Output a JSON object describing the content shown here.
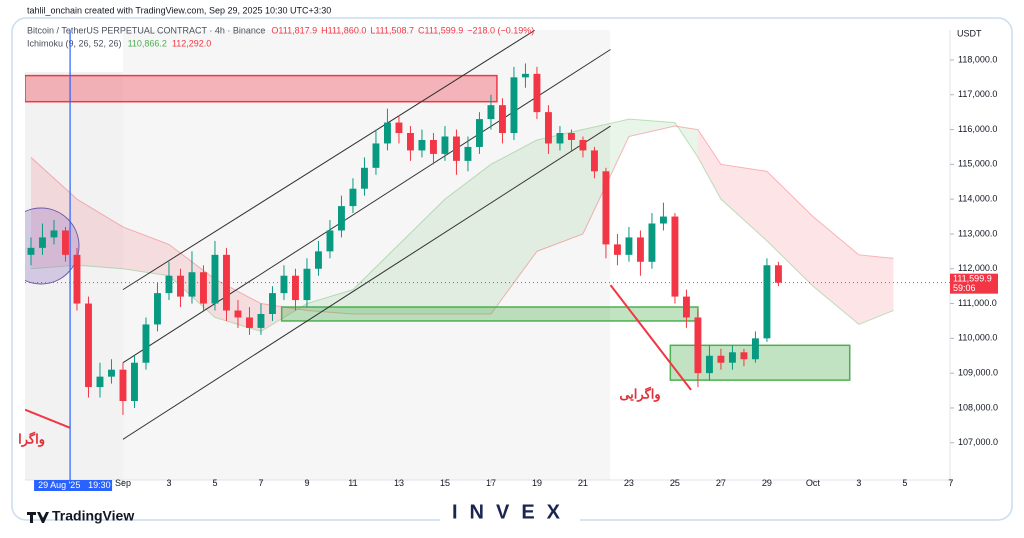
{
  "chart_data": {
    "type": "candlestick",
    "attribution": "tahlil_onchain created with TradingView.com, Sep 29, 2025 10:30 UTC+3:30",
    "symbol": "Bitcoin / TetherUS PERPETUAL CONTRACT · 4h · Binance",
    "ohlc_labels": [
      "O111,817.9",
      "H111,860.0",
      "L111,508.7",
      "C111,599.9",
      "−218.0 (−0.19%)"
    ],
    "indicator": "Ichimoku (9, 26, 52, 26)",
    "indicator_values": [
      "110,866.2",
      "112,292.0"
    ],
    "currency": "USDT",
    "up_color": "#089981",
    "down_color": "#f23645",
    "x": [
      -4,
      -3.5,
      -3,
      -2.5,
      -2,
      -1.5,
      -1,
      -0.5,
      0,
      0.5,
      1,
      1.5,
      2,
      2.5,
      3,
      3.5,
      4,
      4.5,
      5,
      5.5,
      6,
      6.5,
      7,
      7.5,
      8,
      8.5,
      9,
      9.5,
      10,
      10.5,
      11,
      11.5,
      12,
      12.5,
      13,
      13.5,
      14,
      14.5,
      15,
      15.5,
      16,
      16.5,
      17,
      17.5,
      18,
      18.5,
      19,
      19.5,
      20,
      20.5,
      21,
      21.5,
      22,
      22.5,
      23,
      23.5,
      24,
      24.5,
      25,
      25.5,
      26,
      26.5,
      27,
      27.5,
      28,
      28.5
    ],
    "open": [
      112400,
      112600,
      112900,
      113100,
      112400,
      111000,
      108600,
      108900,
      109100,
      108200,
      109300,
      110400,
      111300,
      111800,
      111200,
      111900,
      111000,
      112400,
      110800,
      110600,
      110300,
      110700,
      111300,
      111800,
      111100,
      112000,
      112500,
      113100,
      113800,
      114300,
      114900,
      115600,
      116200,
      115900,
      115400,
      115700,
      115300,
      115800,
      115100,
      115500,
      116300,
      116700,
      115900,
      117500,
      117600,
      116500,
      115600,
      115900,
      115700,
      115400,
      114800,
      112700,
      112400,
      112900,
      112200,
      113300,
      113500,
      111200,
      110600,
      109000,
      109500,
      109300,
      109600,
      109400,
      110000,
      112100
    ],
    "high": [
      112900,
      113300,
      113400,
      113200,
      112600,
      111200,
      109300,
      109400,
      109300,
      109500,
      110600,
      111600,
      112200,
      112000,
      112500,
      112100,
      112800,
      112600,
      111100,
      110900,
      111000,
      111500,
      112100,
      112000,
      112300,
      112800,
      113400,
      114100,
      114600,
      115200,
      116000,
      116600,
      116400,
      116100,
      116000,
      115900,
      116100,
      116000,
      115800,
      116500,
      117000,
      116900,
      117800,
      117900,
      117800,
      116700,
      116100,
      116000,
      115800,
      115500,
      114900,
      113000,
      113200,
      113100,
      113600,
      113900,
      113600,
      111400,
      110800,
      109800,
      109700,
      109800,
      109700,
      110200,
      112300,
      112200
    ],
    "low": [
      112100,
      112400,
      112700,
      112200,
      110800,
      108300,
      108300,
      108700,
      107800,
      108000,
      109100,
      110200,
      111100,
      110900,
      111000,
      110800,
      110800,
      110500,
      110300,
      110100,
      110100,
      110500,
      111100,
      110800,
      110900,
      111800,
      112300,
      112900,
      113600,
      114100,
      114700,
      115400,
      115600,
      115100,
      115200,
      115000,
      115100,
      114700,
      114800,
      115300,
      116000,
      115600,
      115700,
      117200,
      116300,
      115300,
      115400,
      115400,
      115200,
      114600,
      112300,
      112100,
      112200,
      111800,
      112000,
      113100,
      111000,
      110300,
      108600,
      108800,
      109100,
      109100,
      109200,
      109300,
      109900,
      111500
    ],
    "close": [
      112600,
      112900,
      113100,
      112400,
      111000,
      108600,
      108900,
      109100,
      108200,
      109300,
      110400,
      111300,
      111800,
      111200,
      111900,
      111000,
      112400,
      110800,
      110600,
      110300,
      110700,
      111300,
      111800,
      111100,
      112000,
      112500,
      113100,
      113800,
      114300,
      114900,
      115600,
      116200,
      115900,
      115400,
      115700,
      115300,
      115800,
      115100,
      115500,
      116300,
      116700,
      115900,
      117500,
      117600,
      116500,
      115600,
      115900,
      115700,
      115400,
      114800,
      112700,
      112400,
      112900,
      112200,
      113300,
      113500,
      111200,
      110600,
      109000,
      109500,
      109300,
      109600,
      109400,
      110000,
      112100,
      111600
    ],
    "cloud": {
      "x": [
        -4,
        -2,
        0,
        2,
        4,
        6,
        8,
        10,
        12,
        14,
        16,
        18,
        20,
        22,
        24,
        25,
        26,
        28,
        30,
        32,
        33.5
      ],
      "span_a": [
        112000,
        112100,
        112000,
        111800,
        110600,
        110200,
        111000,
        111400,
        112700,
        114000,
        115000,
        115700,
        116000,
        116300,
        116200,
        115200,
        114000,
        112800,
        111500,
        110400,
        110800
      ],
      "span_b": [
        115200,
        114000,
        113200,
        112700,
        111700,
        111000,
        110800,
        110700,
        110700,
        110700,
        110700,
        112500,
        113000,
        115800,
        116100,
        116000,
        115000,
        114800,
        113500,
        112400,
        112300
      ],
      "up_color": "#4caf50",
      "down_color": "#f23645"
    },
    "zones": [
      {
        "x": [
          -4.26,
          16.26
        ],
        "y": [
          116800,
          117550
        ],
        "color": "#f23645"
      },
      {
        "x": [
          6.9,
          25
        ],
        "y": [
          110500,
          110900
        ],
        "color": "#4caf50"
      },
      {
        "x": [
          23.8,
          31.6
        ],
        "y": [
          108800,
          109800
        ],
        "color": "#4caf50"
      }
    ],
    "trend_lines": [
      {
        "x": [
          0,
          17.9
        ],
        "y": [
          111400,
          118850
        ],
        "color": "#333333"
      },
      {
        "x": [
          0,
          21.2
        ],
        "y": [
          109300,
          118300
        ],
        "color": "#333333"
      },
      {
        "x": [
          0,
          21.2
        ],
        "y": [
          107100,
          116100
        ],
        "color": "#333333"
      },
      {
        "x": [
          -4.26,
          -2.3
        ],
        "y": [
          107950,
          107430
        ],
        "color": "#f23645"
      },
      {
        "x": [
          21.2,
          24.7
        ],
        "y": [
          111530,
          108520
        ],
        "color": "#f23645"
      }
    ],
    "annotations": [
      "واگرایی",
      "واگرا"
    ],
    "last_price": {
      "value": 111599.9,
      "label": "111,599.9"
    },
    "countdown": "59:06",
    "crosshair": {
      "value": -2.3,
      "date": "29 Aug '25",
      "time": "19:30"
    },
    "xlim": [
      -4.26,
      35.96
    ],
    "ylim": [
      105930,
      118860
    ],
    "xticks": [
      {
        "value": 0,
        "label": "Sep"
      },
      {
        "value": 2,
        "label": "3"
      },
      {
        "value": 4,
        "label": "5"
      },
      {
        "value": 6,
        "label": "7"
      },
      {
        "value": 8,
        "label": "9"
      },
      {
        "value": 10,
        "label": "11"
      },
      {
        "value": 12,
        "label": "13"
      },
      {
        "value": 14,
        "label": "15"
      },
      {
        "value": 16,
        "label": "17"
      },
      {
        "value": 18,
        "label": "19"
      },
      {
        "value": 20,
        "label": "21"
      },
      {
        "value": 22,
        "label": "23"
      },
      {
        "value": 24,
        "label": "25"
      },
      {
        "value": 26,
        "label": "27"
      },
      {
        "value": 28,
        "label": "29"
      },
      {
        "value": 30,
        "label": "Oct"
      },
      {
        "value": 32,
        "label": "3"
      },
      {
        "value": 34,
        "label": "5"
      },
      {
        "value": 36,
        "label": "7"
      }
    ],
    "yticks": [
      {
        "value": 107000,
        "label": "107,000.0"
      },
      {
        "value": 108000,
        "label": "108,000.0"
      },
      {
        "value": 109000,
        "label": "109,000.0"
      },
      {
        "value": 110000,
        "label": "110,000.0"
      },
      {
        "value": 111000,
        "label": "111,000.0"
      },
      {
        "value": 112000,
        "label": "112,000.0"
      },
      {
        "value": 113000,
        "label": "113,000.0"
      },
      {
        "value": 114000,
        "label": "114,000.0"
      },
      {
        "value": 115000,
        "label": "115,000.0"
      },
      {
        "value": 116000,
        "label": "116,000.0"
      },
      {
        "value": 117000,
        "label": "117,000.0"
      },
      {
        "value": 118000,
        "label": "118,000.0"
      }
    ],
    "brand": "TradingView",
    "watermark": "INVEX"
  }
}
